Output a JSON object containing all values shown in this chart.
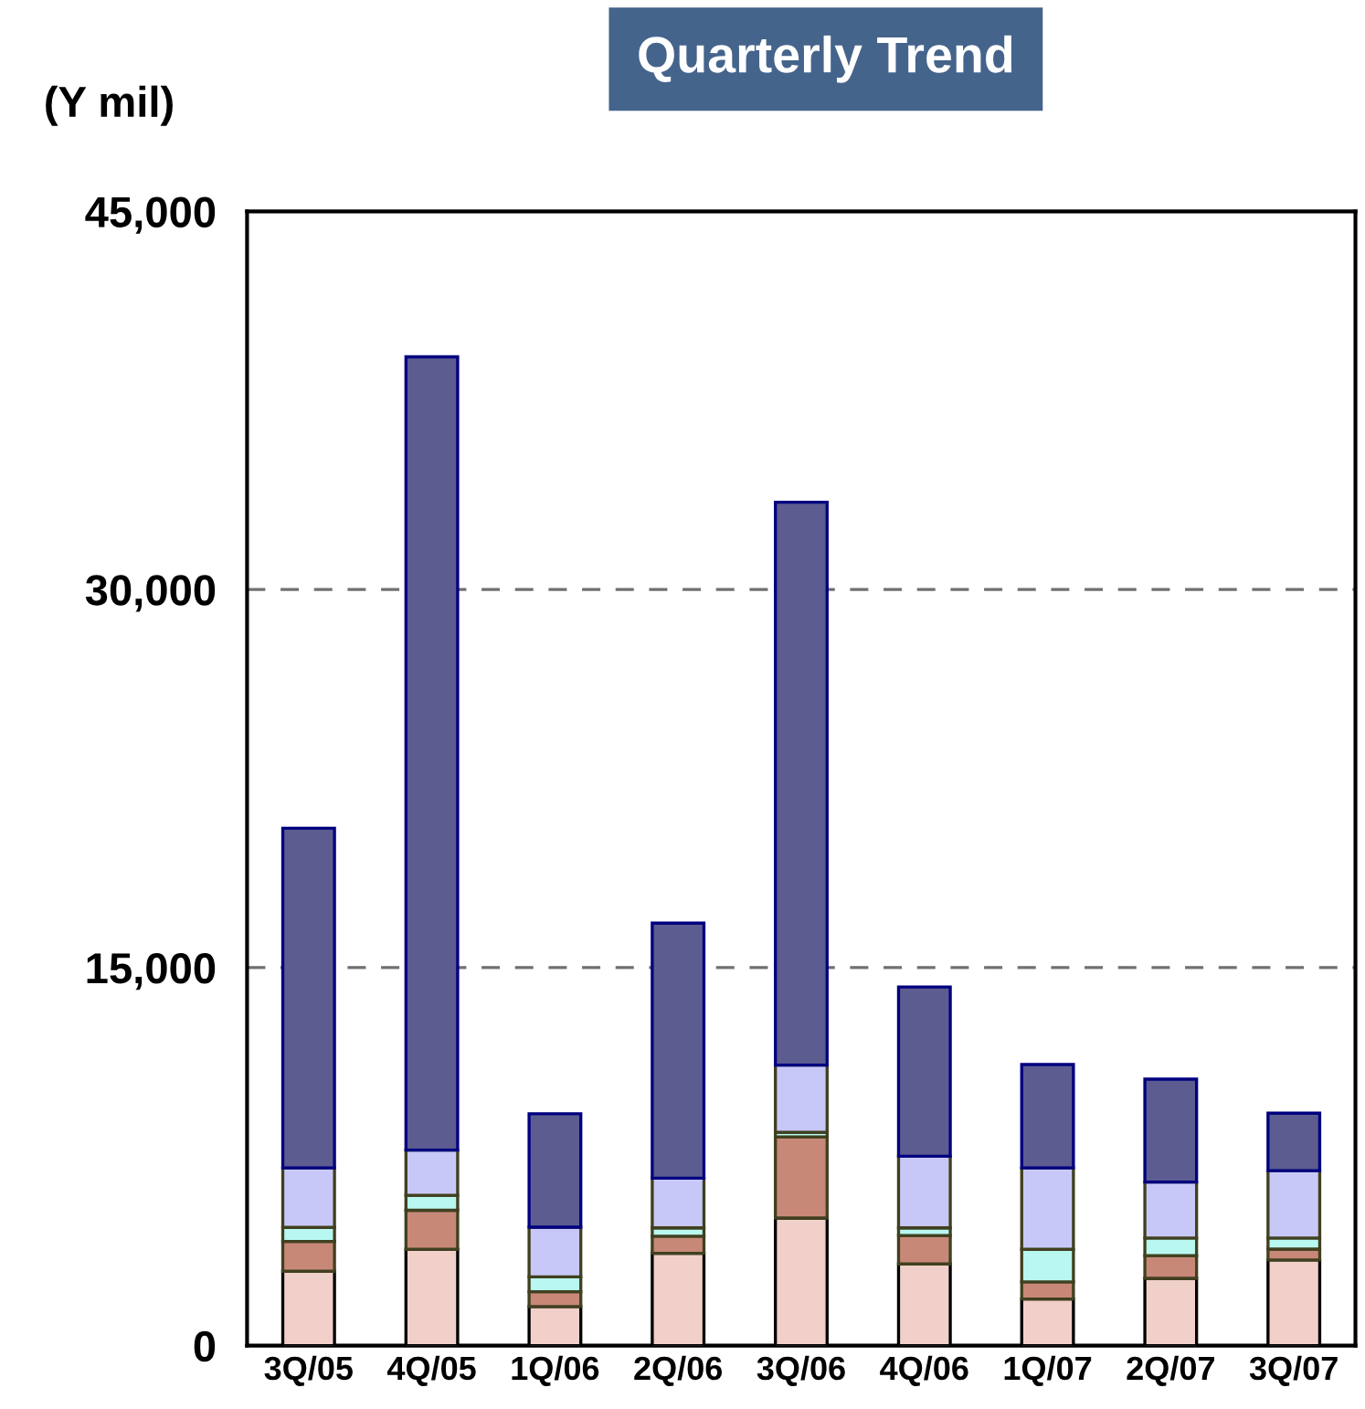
{
  "chart_data": {
    "type": "bar",
    "title": "Quarterly Trend",
    "ylabel": "(Y mil)",
    "categories": [
      "3Q/05",
      "4Q/05",
      "1Q/06",
      "2Q/06",
      "3Q/06",
      "4Q/06",
      "1Q/07",
      "2Q/07",
      "3Q/07"
    ],
    "stacked": true,
    "series": [
      {
        "color": "#f0d0c8",
        "values": [
          2950,
          3820,
          1550,
          3660,
          5060,
          3240,
          1850,
          2670,
          3400
        ]
      },
      {
        "color": "#c88878",
        "values": [
          1180,
          1550,
          590,
          680,
          3220,
          1130,
          680,
          900,
          430
        ]
      },
      {
        "color": "#b8f8f0",
        "values": [
          560,
          590,
          590,
          330,
          180,
          300,
          1290,
          700,
          440
        ]
      },
      {
        "color": "#c8c8f8",
        "values": [
          2360,
          1800,
          1970,
          1970,
          2670,
          2840,
          3230,
          2220,
          2670
        ]
      },
      {
        "color": "#5c5c90",
        "values": [
          13480,
          31470,
          4500,
          10120,
          22330,
          6720,
          4100,
          4080,
          2280
        ]
      }
    ],
    "ylim": [
      0,
      45000
    ],
    "yticks": [
      {
        "value": 0,
        "label": "0"
      },
      {
        "value": 15000,
        "label": "15,000"
      },
      {
        "value": 30000,
        "label": "30,000"
      },
      {
        "value": 45000,
        "label": "45,000"
      }
    ],
    "grid": "y",
    "line_style": "dashed"
  }
}
